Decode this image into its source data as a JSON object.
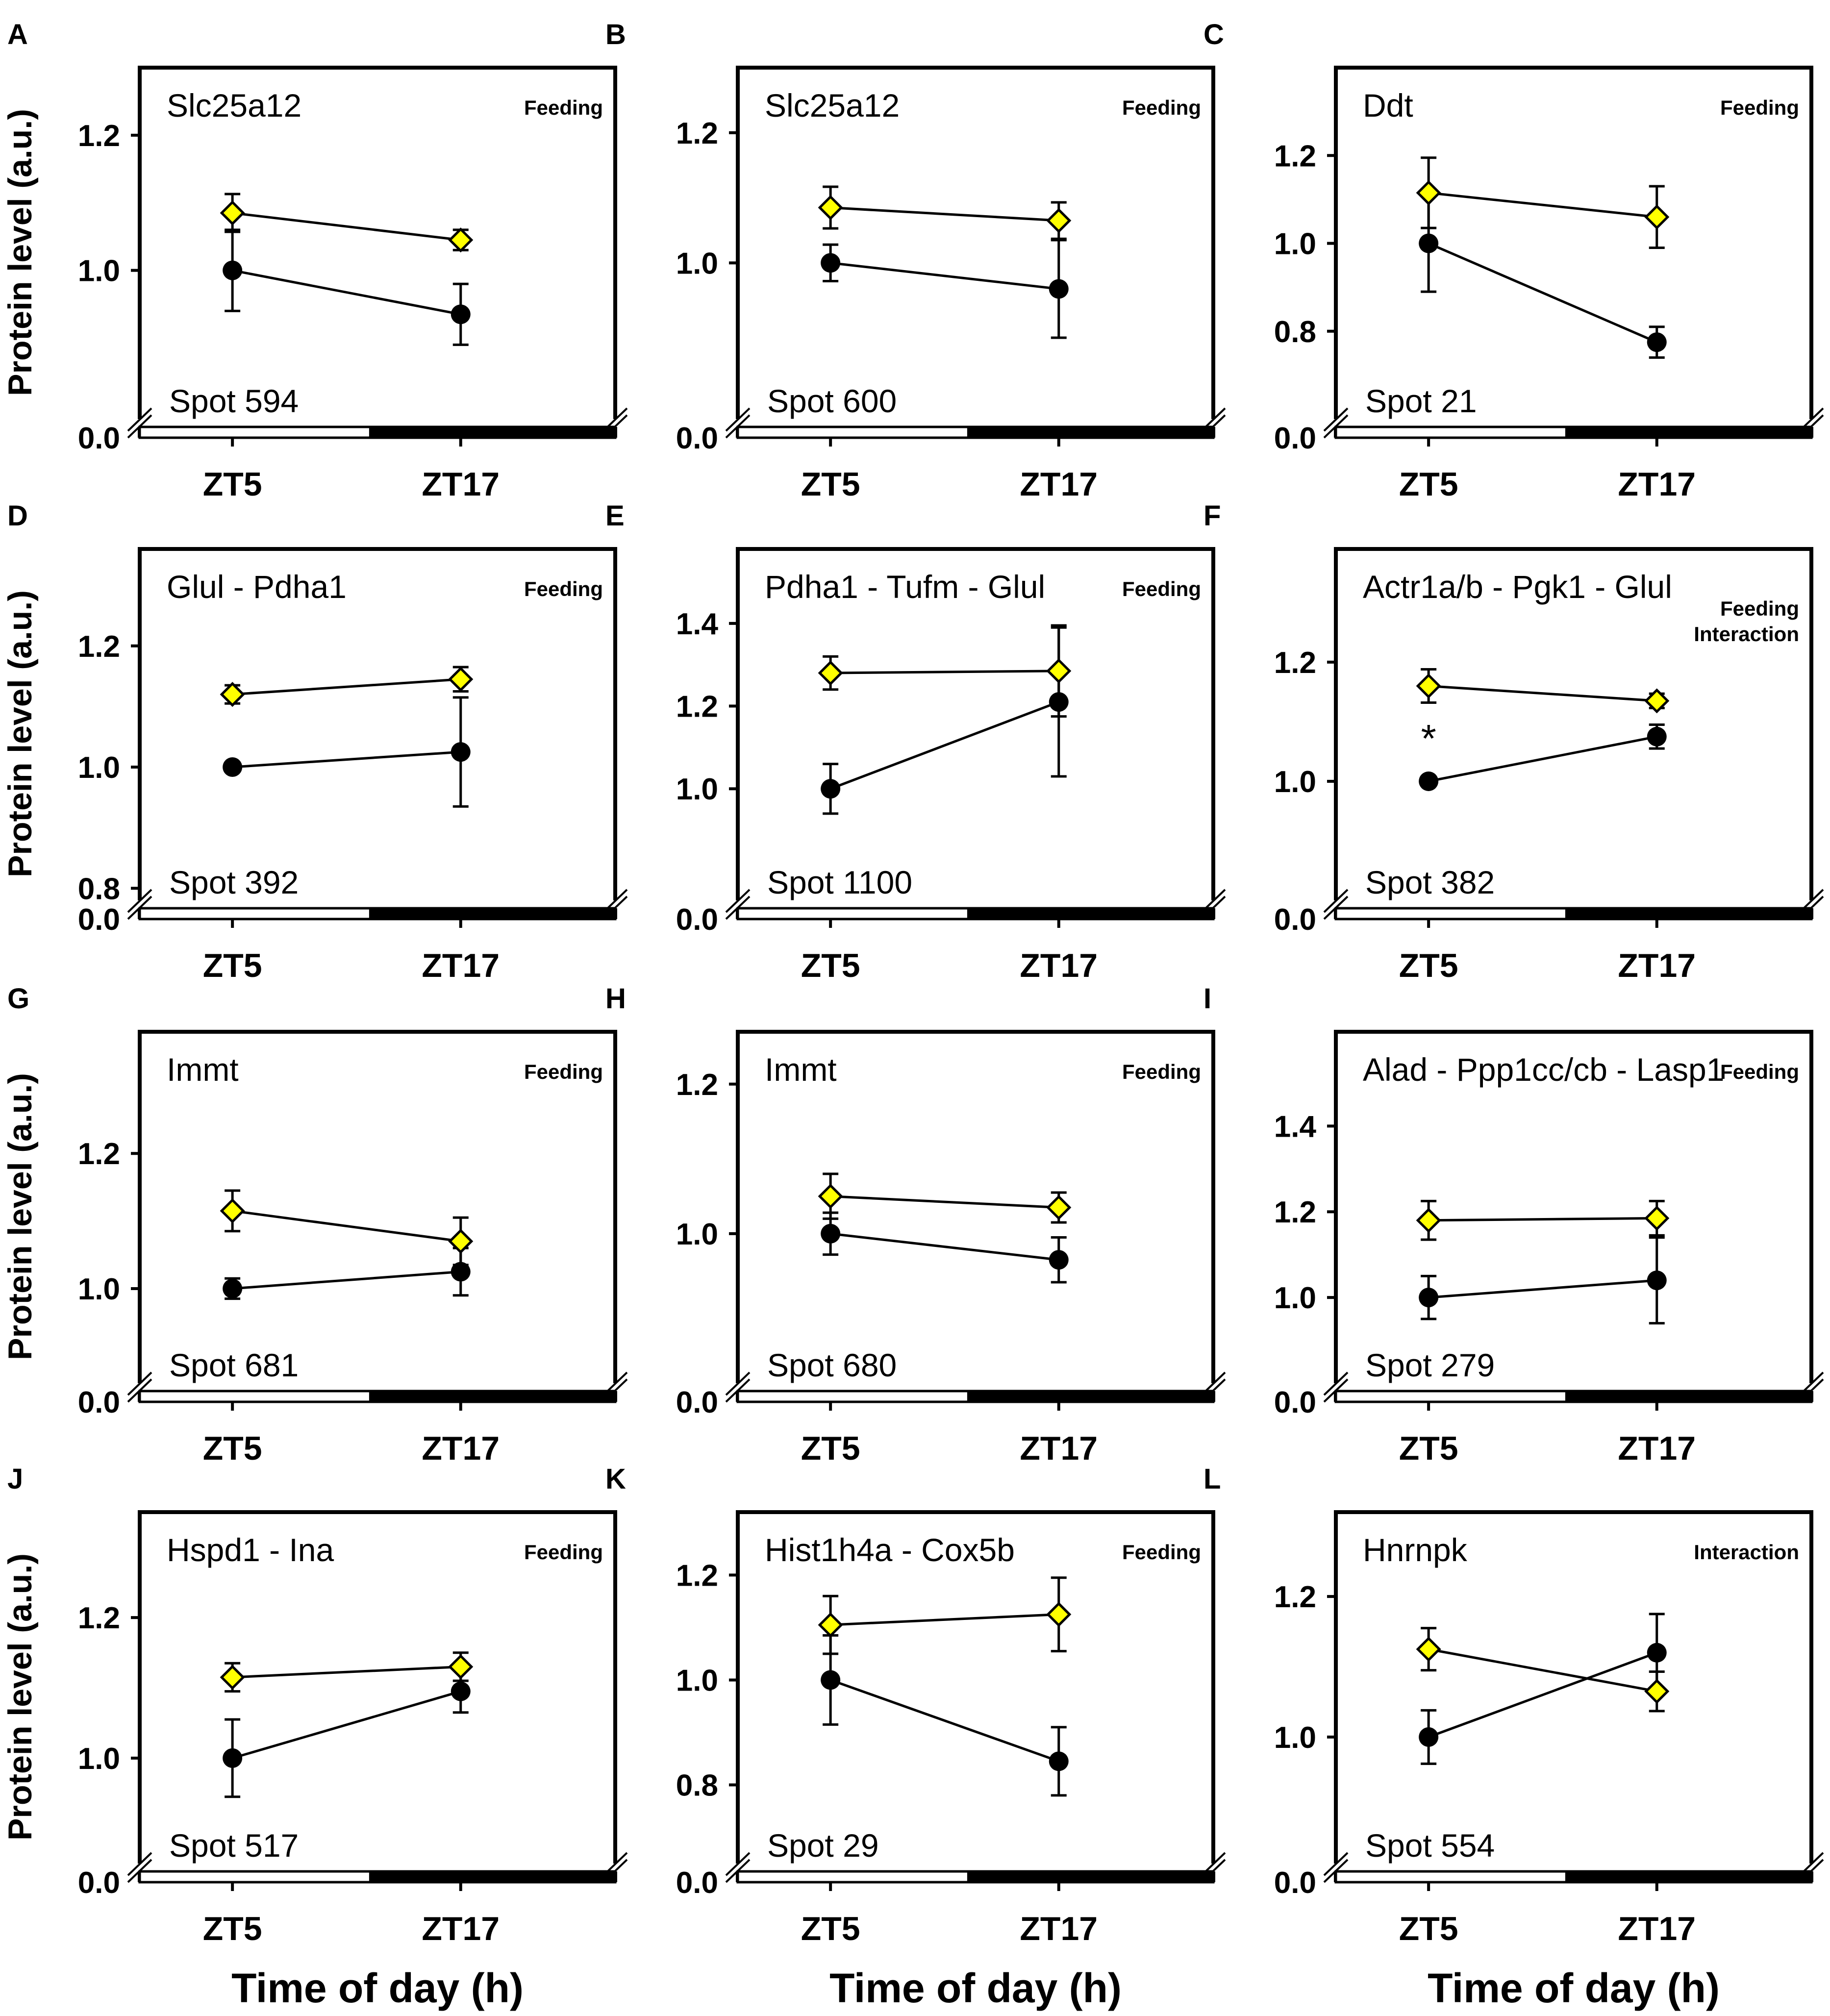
{
  "figure": {
    "ylabel": "Protein level (a.u.)",
    "xlabel": "Time of day (h)",
    "x_categories": [
      "ZT5",
      "ZT17"
    ],
    "colors": {
      "series_ad_lib": "#000000",
      "series_restricted": "#ffff00",
      "light_phase": "#ffffff",
      "dark_phase": "#000000"
    }
  },
  "chart_data": [
    {
      "letter": "A",
      "type": "line",
      "title": "Slc25a12",
      "effects": [
        "Feeding"
      ],
      "spot": "Spot 594",
      "categories": [
        "ZT5",
        "ZT17"
      ],
      "ylim": [
        0.78,
        1.3
      ],
      "ticks": [
        1.0,
        1.2
      ],
      "zero_tick": "0.0",
      "series": [
        {
          "name": "circle",
          "values": [
            1.0,
            0.935
          ],
          "err": [
            0.06,
            0.045
          ]
        },
        {
          "name": "diamond",
          "values": [
            1.085,
            1.045
          ],
          "err": [
            0.028,
            0.015
          ]
        }
      ],
      "star": false
    },
    {
      "letter": "B",
      "type": "line",
      "title": "Slc25a12",
      "effects": [
        "Feeding"
      ],
      "spot": "Spot 600",
      "categories": [
        "ZT5",
        "ZT17"
      ],
      "ylim": [
        0.76,
        1.3
      ],
      "ticks": [
        1.0,
        1.2
      ],
      "zero_tick": "0.0",
      "series": [
        {
          "name": "circle",
          "values": [
            1.0,
            0.96
          ],
          "err": [
            0.028,
            0.075
          ]
        },
        {
          "name": "diamond",
          "values": [
            1.085,
            1.065
          ],
          "err": [
            0.032,
            0.028
          ]
        }
      ],
      "star": false
    },
    {
      "letter": "C",
      "type": "line",
      "title": "Ddt",
      "effects": [
        "Feeding"
      ],
      "spot": "Spot 21",
      "categories": [
        "ZT5",
        "ZT17"
      ],
      "ylim": [
        0.6,
        1.4
      ],
      "ticks": [
        0.8,
        1.0,
        1.2
      ],
      "zero_tick": "0.0",
      "series": [
        {
          "name": "circle",
          "values": [
            1.0,
            0.775
          ],
          "err": [
            0.11,
            0.035
          ]
        },
        {
          "name": "diamond",
          "values": [
            1.115,
            1.06
          ],
          "err": [
            0.08,
            0.07
          ]
        }
      ],
      "star": false
    },
    {
      "letter": "D",
      "type": "line",
      "title": "Glul - Pdha1",
      "effects": [
        "Feeding"
      ],
      "spot": "Spot 392",
      "categories": [
        "ZT5",
        "ZT17"
      ],
      "ylim": [
        0.78,
        1.36
      ],
      "ticks": [
        0.8,
        1.0,
        1.2
      ],
      "zero_tick": "0.0",
      "series": [
        {
          "name": "circle",
          "values": [
            1.0,
            1.025
          ],
          "err": [
            0.0,
            0.09
          ]
        },
        {
          "name": "diamond",
          "values": [
            1.12,
            1.145
          ],
          "err": [
            0.015,
            0.02
          ]
        }
      ],
      "star": false
    },
    {
      "letter": "E",
      "type": "line",
      "title": "Pdha1 - Tufm - Glul",
      "effects": [
        "Feeding"
      ],
      "spot": "Spot 1100",
      "categories": [
        "ZT5",
        "ZT17"
      ],
      "ylim": [
        0.73,
        1.58
      ],
      "ticks": [
        1.0,
        1.2,
        1.4
      ],
      "zero_tick": "0.0",
      "series": [
        {
          "name": "circle",
          "values": [
            1.0,
            1.21
          ],
          "err": [
            0.06,
            0.18
          ]
        },
        {
          "name": "diamond",
          "values": [
            1.28,
            1.285
          ],
          "err": [
            0.04,
            0.11
          ]
        }
      ],
      "star": false
    },
    {
      "letter": "F",
      "type": "line",
      "title": "Actr1a/b - Pgk1 - Glul",
      "effects": [
        "Feeding",
        "Interaction"
      ],
      "spot": "Spot 382",
      "categories": [
        "ZT5",
        "ZT17"
      ],
      "ylim": [
        0.8,
        1.39
      ],
      "ticks": [
        1.0,
        1.2
      ],
      "zero_tick": "0.0",
      "series": [
        {
          "name": "circle",
          "values": [
            1.0,
            1.075
          ],
          "err": [
            0.0,
            0.02
          ]
        },
        {
          "name": "diamond",
          "values": [
            1.16,
            1.135
          ],
          "err": [
            0.028,
            0.012
          ]
        }
      ],
      "star": true,
      "star_label": "*"
    },
    {
      "letter": "G",
      "type": "line",
      "title": "Immt",
      "effects": [
        "Feeding"
      ],
      "spot": "Spot 681",
      "categories": [
        "ZT5",
        "ZT17"
      ],
      "ylim": [
        0.86,
        1.38
      ],
      "ticks": [
        1.0,
        1.2
      ],
      "zero_tick": "0.0",
      "series": [
        {
          "name": "circle",
          "values": [
            1.0,
            1.025
          ],
          "err": [
            0.015,
            0.035
          ]
        },
        {
          "name": "diamond",
          "values": [
            1.115,
            1.07
          ],
          "err": [
            0.03,
            0.035
          ]
        }
      ],
      "star": false
    },
    {
      "letter": "H",
      "type": "line",
      "title": "Immt",
      "effects": [
        "Feeding"
      ],
      "spot": "Spot 680",
      "categories": [
        "ZT5",
        "ZT17"
      ],
      "ylim": [
        0.8,
        1.27
      ],
      "ticks": [
        1.0,
        1.2
      ],
      "zero_tick": "0.0",
      "series": [
        {
          "name": "circle",
          "values": [
            1.0,
            0.965
          ],
          "err": [
            0.028,
            0.03
          ]
        },
        {
          "name": "diamond",
          "values": [
            1.05,
            1.035
          ],
          "err": [
            0.03,
            0.02
          ]
        }
      ],
      "star": false
    },
    {
      "letter": "I",
      "type": "line",
      "title": "Alad - Ppp1cc/cb - Lasp1",
      "effects": [
        "Feeding"
      ],
      "spot": "Spot 279",
      "categories": [
        "ZT5",
        "ZT17"
      ],
      "ylim": [
        0.8,
        1.62
      ],
      "ticks": [
        1.0,
        1.2,
        1.4
      ],
      "zero_tick": "0.0",
      "series": [
        {
          "name": "circle",
          "values": [
            1.0,
            1.04
          ],
          "err": [
            0.05,
            0.1
          ]
        },
        {
          "name": "diamond",
          "values": [
            1.18,
            1.185
          ],
          "err": [
            0.045,
            0.04
          ]
        }
      ],
      "star": false
    },
    {
      "letter": "J",
      "type": "line",
      "title": "Hspd1 - Ina",
      "effects": [
        "Feeding"
      ],
      "spot": "Spot 517",
      "categories": [
        "ZT5",
        "ZT17"
      ],
      "ylim": [
        0.85,
        1.35
      ],
      "ticks": [
        1.0,
        1.2
      ],
      "zero_tick": "0.0",
      "series": [
        {
          "name": "circle",
          "values": [
            1.0,
            1.095
          ],
          "err": [
            0.055,
            0.03
          ]
        },
        {
          "name": "diamond",
          "values": [
            1.115,
            1.13
          ],
          "err": [
            0.02,
            0.02
          ]
        }
      ],
      "star": false
    },
    {
      "letter": "K",
      "type": "line",
      "title": "Hist1h4a - Cox5b",
      "effects": [
        "Feeding"
      ],
      "spot": "Spot 29",
      "categories": [
        "ZT5",
        "ZT17"
      ],
      "ylim": [
        0.65,
        1.32
      ],
      "ticks": [
        0.8,
        1.0,
        1.2
      ],
      "zero_tick": "0.0",
      "series": [
        {
          "name": "circle",
          "values": [
            1.0,
            0.845
          ],
          "err": [
            0.085,
            0.065
          ]
        },
        {
          "name": "diamond",
          "values": [
            1.105,
            1.125
          ],
          "err": [
            0.055,
            0.07
          ]
        }
      ],
      "star": false
    },
    {
      "letter": "L",
      "type": "line",
      "title": "Hnrnpk",
      "effects": [
        "Interaction"
      ],
      "spot": "Spot 554",
      "categories": [
        "ZT5",
        "ZT17"
      ],
      "ylim": [
        0.82,
        1.32
      ],
      "ticks": [
        1.0,
        1.2
      ],
      "zero_tick": "0.0",
      "series": [
        {
          "name": "circle",
          "values": [
            1.0,
            1.12
          ],
          "err": [
            0.038,
            0.055
          ]
        },
        {
          "name": "diamond",
          "values": [
            1.125,
            1.065
          ],
          "err": [
            0.03,
            0.028
          ]
        }
      ],
      "star": false
    }
  ]
}
